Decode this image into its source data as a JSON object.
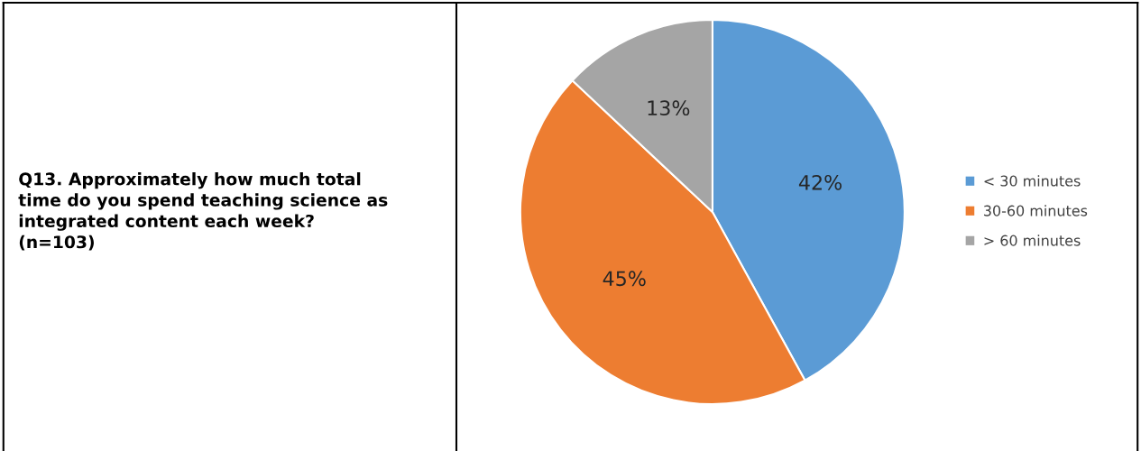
{
  "chart_data": {
    "type": "pie",
    "title": "Q13. Approximately how much total\ntime do you spend teaching science as\nintegrated content each week?\n(n=103)",
    "categories": [
      "< 30 minutes",
      "30-60 minutes",
      "> 60 minutes"
    ],
    "values": [
      42,
      45,
      13
    ],
    "colors": [
      "#5b9bd5",
      "#ed7d31",
      "#a5a5a5"
    ],
    "value_labels": [
      "42%",
      "45%",
      "13%"
    ],
    "legend": "right"
  }
}
